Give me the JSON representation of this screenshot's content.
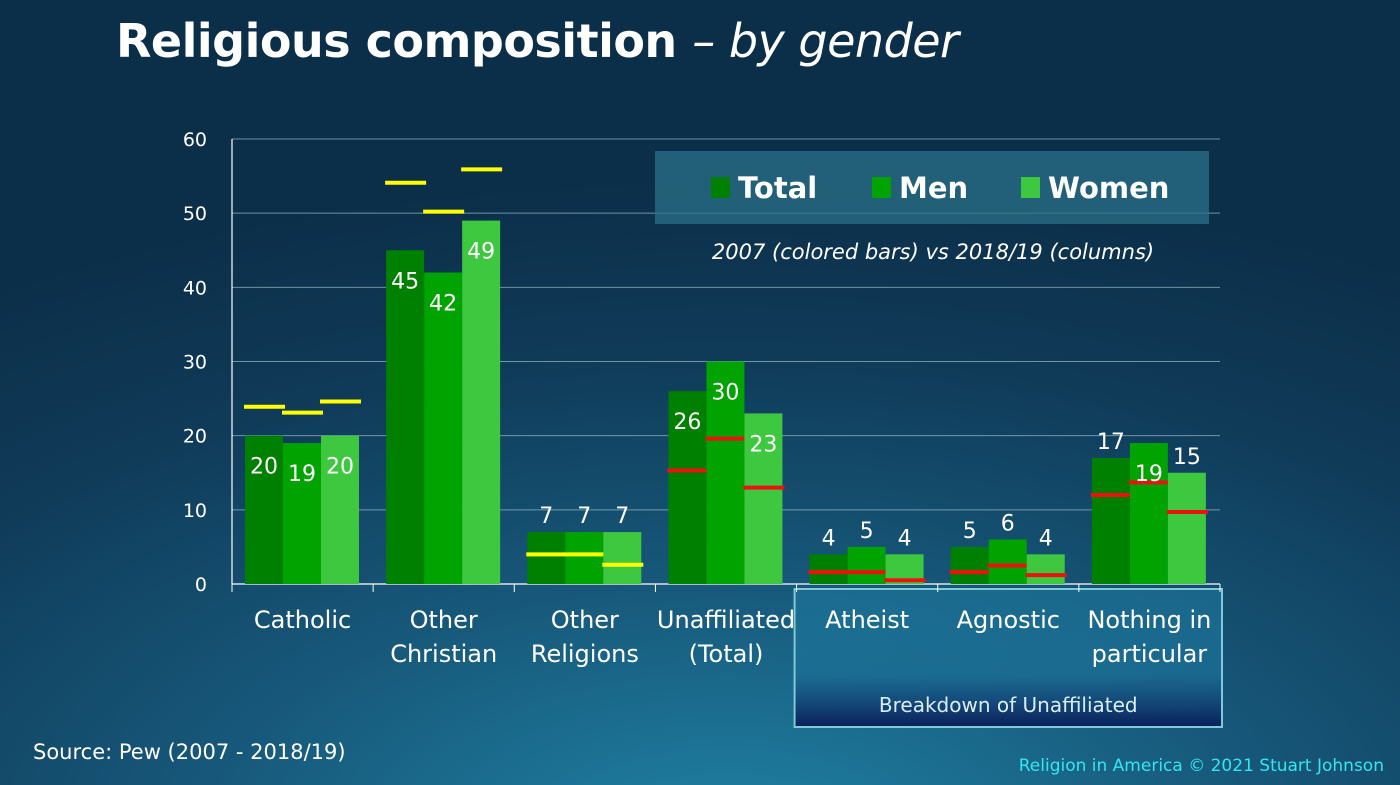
{
  "title": "Religious composition",
  "subtitle": "– by gender",
  "source": "Source: Pew (2007 - 2018/19)",
  "copyright": "Religion in America © 2021 Stuart Johnson",
  "colors": {
    "total": "#008000",
    "men": "#00a300",
    "women": "#3ec840",
    "marker_main": "#ffff00",
    "marker_unaffiliated": "#ee1111",
    "legend_box": "#2a7088",
    "breakdown_border": "#7ecad8"
  },
  "chart_data": {
    "type": "bar",
    "categories": [
      "Catholic",
      "Other Christian",
      "Other Religions",
      "Unaffiliated (Total)",
      "Atheist",
      "Agnostic",
      "Nothing in particular"
    ],
    "series": [
      {
        "name": "Total",
        "values": [
          20,
          45,
          7,
          26,
          4,
          5,
          17
        ],
        "values_2007": [
          23.9,
          54.1,
          4.0,
          15.3,
          1.6,
          1.6,
          12.0
        ]
      },
      {
        "name": "Men",
        "values": [
          19,
          42,
          7,
          30,
          5,
          6,
          19
        ],
        "values_2007": [
          23.1,
          50.2,
          4.0,
          19.6,
          1.6,
          2.5,
          13.7
        ]
      },
      {
        "name": "Women",
        "values": [
          20,
          49,
          7,
          23,
          4,
          4,
          15
        ],
        "values_2007": [
          24.6,
          55.9,
          2.6,
          13.0,
          0.5,
          1.2,
          9.7
        ]
      }
    ],
    "yticks": [
      0,
      10,
      20,
      30,
      40,
      50,
      60
    ],
    "ylim": [
      0,
      60
    ],
    "legend_position": "top-right",
    "note": "2007 (colored bars) vs 2018/19 (columns)",
    "breakdown_label": "Breakdown of Unaffiliated",
    "breakdown_categories": [
      "Atheist",
      "Agnostic",
      "Nothing in particular"
    ]
  }
}
